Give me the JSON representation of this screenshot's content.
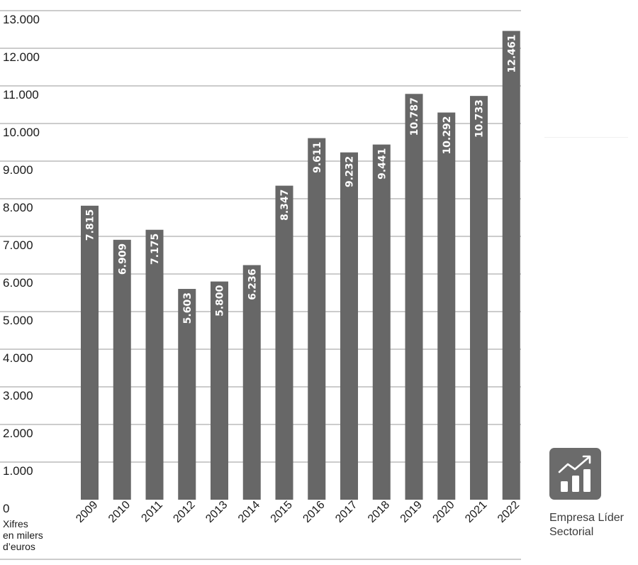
{
  "chart_data": {
    "type": "bar",
    "categories": [
      "2009",
      "2010",
      "2011",
      "2012",
      "2013",
      "2014",
      "2015",
      "2016",
      "2017",
      "2018",
      "2019",
      "2020",
      "2021",
      "2022"
    ],
    "values": [
      7815,
      6909,
      7175,
      5603,
      5800,
      6236,
      8347,
      9611,
      9232,
      9441,
      10787,
      10292,
      10733,
      12461
    ],
    "value_labels": [
      "7.815",
      "6.909",
      "7.175",
      "5.603",
      "5.800",
      "6.236",
      "8.347",
      "9.611",
      "9.232",
      "9.441",
      "10.787",
      "10.292",
      "10.733",
      "12.461"
    ],
    "ylim": [
      0,
      13000
    ],
    "yticks": [
      0,
      1000,
      2000,
      3000,
      4000,
      5000,
      6000,
      7000,
      8000,
      9000,
      10000,
      11000,
      12000,
      13000
    ],
    "ytick_labels": [
      "0",
      "1.000",
      "2.000",
      "3.000",
      "4.000",
      "5.000",
      "6.000",
      "7.000",
      "8.000",
      "9.000",
      "10.000",
      "11.000",
      "12.000",
      "13.000"
    ],
    "unit_note": [
      "Xifres",
      "en milers",
      "d’euros"
    ],
    "grid": true,
    "bar_color": "#676767",
    "grid_color": "#9a9a9a"
  },
  "badge": {
    "icon": "chart-growth-icon",
    "label_lines": [
      "Empresa Líder",
      "Sectorial"
    ],
    "color": "#6b6b6b"
  }
}
